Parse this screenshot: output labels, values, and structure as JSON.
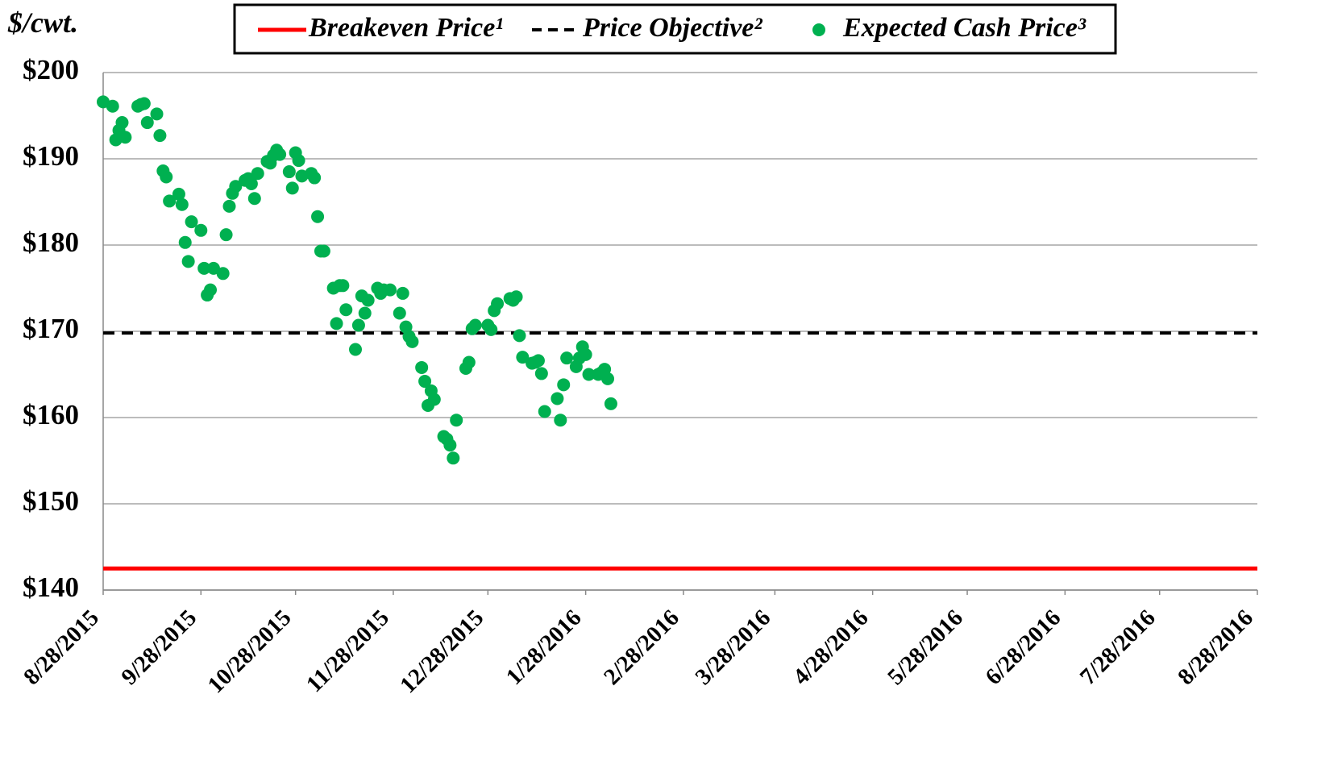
{
  "chart_data": {
    "type": "scatter",
    "y_label": "$/cwt.",
    "xlim": [
      "2015-08-28",
      "2016-08-28"
    ],
    "xticks": [
      {
        "value": "2015-08-28",
        "label": "8/28/2015"
      },
      {
        "value": "2015-09-28",
        "label": "9/28/2015"
      },
      {
        "value": "2015-10-28",
        "label": "10/28/2015"
      },
      {
        "value": "2015-11-28",
        "label": "11/28/2015"
      },
      {
        "value": "2015-12-28",
        "label": "12/28/2015"
      },
      {
        "value": "2016-01-28",
        "label": "1/28/2016"
      },
      {
        "value": "2016-02-28",
        "label": "2/28/2016"
      },
      {
        "value": "2016-03-28",
        "label": "3/28/2016"
      },
      {
        "value": "2016-04-28",
        "label": "4/28/2016"
      },
      {
        "value": "2016-05-28",
        "label": "5/28/2016"
      },
      {
        "value": "2016-06-28",
        "label": "6/28/2016"
      },
      {
        "value": "2016-07-28",
        "label": "7/28/2016"
      },
      {
        "value": "2016-08-28",
        "label": "8/28/2016"
      }
    ],
    "ylim": [
      140,
      200
    ],
    "yticks": [
      {
        "value": 140,
        "label": "$140"
      },
      {
        "value": 150,
        "label": "$150"
      },
      {
        "value": 160,
        "label": "$160"
      },
      {
        "value": 170,
        "label": "$170"
      },
      {
        "value": 180,
        "label": "$180"
      },
      {
        "value": 190,
        "label": "$190"
      },
      {
        "value": 200,
        "label": "$200"
      }
    ],
    "grid": true,
    "legend": "top",
    "series": [
      {
        "name": "Breakeven Price¹",
        "type": "line",
        "dash": false,
        "color": "#ff0000",
        "x": [
          "2015-08-28",
          "2016-08-28"
        ],
        "values": [
          142.5,
          142.5
        ]
      },
      {
        "name": "Price Objective²",
        "type": "line",
        "dash": true,
        "color": "#000000",
        "x": [
          "2015-08-28",
          "2016-08-28"
        ],
        "values": [
          169.8,
          169.8
        ]
      },
      {
        "name": "Expected Cash Price³",
        "type": "scatter",
        "color": "#00b050",
        "x": [
          "2015-08-28",
          "2015-08-31",
          "2015-09-01",
          "2015-09-02",
          "2015-09-03",
          "2015-09-04",
          "2015-09-08",
          "2015-09-09",
          "2015-09-10",
          "2015-09-11",
          "2015-09-14",
          "2015-09-15",
          "2015-09-16",
          "2015-09-17",
          "2015-09-18",
          "2015-09-21",
          "2015-09-22",
          "2015-09-23",
          "2015-09-24",
          "2015-09-25",
          "2015-09-28",
          "2015-09-29",
          "2015-09-30",
          "2015-10-01",
          "2015-10-02",
          "2015-10-05",
          "2015-10-06",
          "2015-10-07",
          "2015-10-08",
          "2015-10-09",
          "2015-10-12",
          "2015-10-13",
          "2015-10-14",
          "2015-10-15",
          "2015-10-16",
          "2015-10-19",
          "2015-10-20",
          "2015-10-21",
          "2015-10-22",
          "2015-10-23",
          "2015-10-26",
          "2015-10-27",
          "2015-10-28",
          "2015-10-29",
          "2015-10-30",
          "2015-11-02",
          "2015-11-03",
          "2015-11-04",
          "2015-11-05",
          "2015-11-06",
          "2015-11-09",
          "2015-11-10",
          "2015-11-11",
          "2015-11-12",
          "2015-11-13",
          "2015-11-16",
          "2015-11-17",
          "2015-11-18",
          "2015-11-19",
          "2015-11-20",
          "2015-11-23",
          "2015-11-24",
          "2015-11-25",
          "2015-11-27",
          "2015-11-30",
          "2015-12-01",
          "2015-12-02",
          "2015-12-03",
          "2015-12-04",
          "2015-12-07",
          "2015-12-08",
          "2015-12-09",
          "2015-12-10",
          "2015-12-11",
          "2015-12-14",
          "2015-12-15",
          "2015-12-16",
          "2015-12-17",
          "2015-12-18",
          "2015-12-21",
          "2015-12-22",
          "2015-12-23",
          "2015-12-24",
          "2015-12-28",
          "2015-12-29",
          "2015-12-30",
          "2015-12-31",
          "2016-01-04",
          "2016-01-05",
          "2016-01-06",
          "2016-01-07",
          "2016-01-08",
          "2016-01-11",
          "2016-01-12",
          "2016-01-13",
          "2016-01-14",
          "2016-01-15",
          "2016-01-19",
          "2016-01-20",
          "2016-01-21",
          "2016-01-22",
          "2016-01-25",
          "2016-01-26",
          "2016-01-27",
          "2016-01-28",
          "2016-01-29",
          "2016-02-01",
          "2016-02-02",
          "2016-02-03",
          "2016-02-04",
          "2016-02-05"
        ],
        "values": [
          196.6,
          196.1,
          192.2,
          193.3,
          194.2,
          192.5,
          196.1,
          196.3,
          196.4,
          194.2,
          195.2,
          192.7,
          188.6,
          187.9,
          185.1,
          185.9,
          184.7,
          180.3,
          178.1,
          182.7,
          181.7,
          177.3,
          174.2,
          174.8,
          177.3,
          176.7,
          181.2,
          184.5,
          186.0,
          186.8,
          187.5,
          187.7,
          187.1,
          185.4,
          188.3,
          189.7,
          189.5,
          190.4,
          191.0,
          190.5,
          188.5,
          186.6,
          190.7,
          189.8,
          188.0,
          188.3,
          187.8,
          183.3,
          179.3,
          179.3,
          175.0,
          170.9,
          175.3,
          175.3,
          172.5,
          167.9,
          170.7,
          174.1,
          172.1,
          173.6,
          175.0,
          174.4,
          174.8,
          174.8,
          172.1,
          174.4,
          170.5,
          169.4,
          168.8,
          165.8,
          164.2,
          161.4,
          163.1,
          162.1,
          157.8,
          157.5,
          156.8,
          155.3,
          159.7,
          165.7,
          166.4,
          170.3,
          170.7,
          170.7,
          170.2,
          172.4,
          173.2,
          173.8,
          173.6,
          174.0,
          169.5,
          167.0,
          166.3,
          166.4,
          166.6,
          165.1,
          160.7,
          162.2,
          159.7,
          163.8,
          166.9,
          165.9,
          166.9,
          168.2,
          167.3,
          165.0,
          165.0,
          165.2,
          165.6,
          164.5,
          161.6
        ]
      }
    ]
  }
}
